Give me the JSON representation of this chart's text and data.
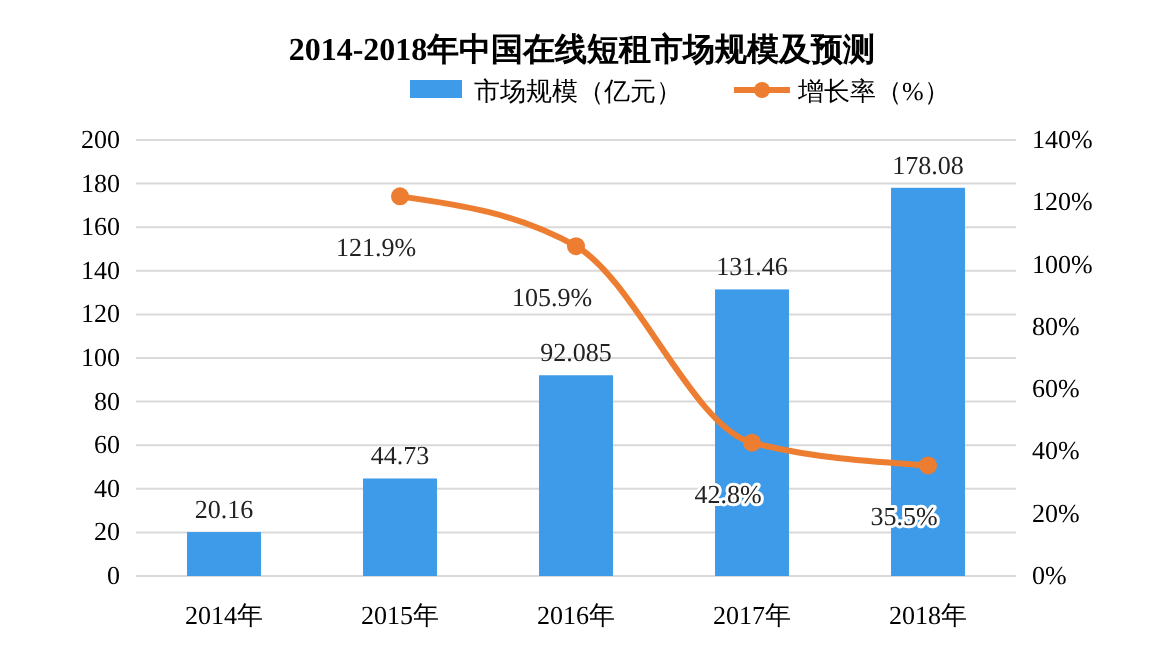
{
  "chart_data": {
    "type": "bar",
    "title": "2014-2018年中国在线短租市场规模及预测",
    "categories": [
      "2014年",
      "2015年",
      "2016年",
      "2017年",
      "2018年"
    ],
    "series": [
      {
        "name": "市场规模（亿元）",
        "color": "#3d9be9",
        "values": [
          20.16,
          44.73,
          92.085,
          131.46,
          178.08
        ],
        "value_labels": [
          "20.16",
          "44.73",
          "92.085",
          "131.46",
          "178.08"
        ]
      },
      {
        "name": "增长率（%）",
        "type": "line",
        "axis": "y2",
        "color": "#ed7d31",
        "values": [
          null,
          121.9,
          105.9,
          42.8,
          35.5
        ],
        "value_labels": [
          null,
          "121.9%",
          "105.9%",
          "42.8%",
          "35.5%"
        ],
        "marker": "circle"
      }
    ],
    "ylim": [
      0,
      200
    ],
    "yticks": [
      0,
      20,
      40,
      60,
      80,
      100,
      120,
      140,
      160,
      180,
      200
    ],
    "y2lim": [
      0,
      140
    ],
    "y2ticks": [
      {
        "value": 0,
        "label": "0%"
      },
      {
        "value": 20,
        "label": "20%"
      },
      {
        "value": 40,
        "label": "40%"
      },
      {
        "value": 60,
        "label": "60%"
      },
      {
        "value": 80,
        "label": "80%"
      },
      {
        "value": 100,
        "label": "100%"
      },
      {
        "value": 120,
        "label": "120%"
      },
      {
        "value": 140,
        "label": "140%"
      }
    ],
    "grid": "y",
    "legend": "top"
  }
}
